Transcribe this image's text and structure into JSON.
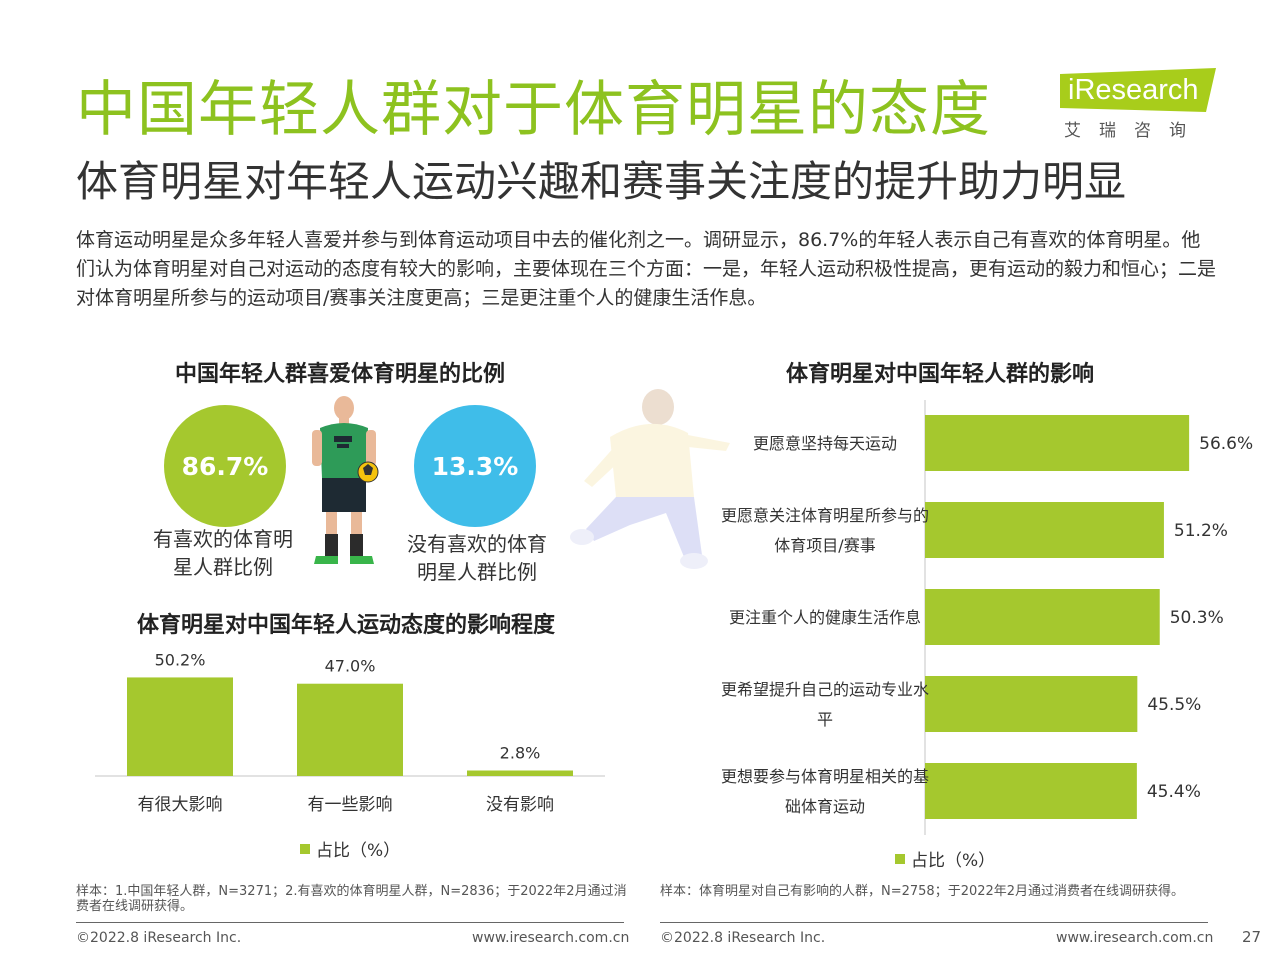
{
  "header": {
    "title": "中国年轻人群对于体育明星的态度",
    "subtitle": "体育明星对年轻人运动兴趣和赛事关注度的提升助力明显",
    "intro": "体育运动明星是众多年轻人喜爱并参与到体育运动项目中去的催化剂之一。调研显示，86.7%的年轻人表示自己有喜欢的体育明星。他们认为体育明星对自己对运动的态度有较大的影响，主要体现在三个方面：一是，年轻人运动积极性提高，更有运动的毅力和恒心；二是对体育明星所参与的运动项目/赛事关注度更高；三是更注重个人的健康生活作息。"
  },
  "logo": {
    "brand": "iResearch",
    "chinese": "艾瑞咨询",
    "colors": {
      "logo_bg": "#a8cd1b"
    }
  },
  "theme": {
    "green": "#a5c82e",
    "blue": "#3fbde9",
    "title_green": "#8dc21f"
  },
  "chart_data": [
    {
      "type": "pie",
      "title": "中国年轻人群喜爱体育明星的比例",
      "slices": [
        {
          "label": "有喜欢的体育明星人群比例",
          "value": 86.7,
          "display": "86.7%",
          "caption_lines": [
            "有喜欢的体育明",
            "星人群比例"
          ],
          "color": "#a5c82e"
        },
        {
          "label": "没有喜欢的体育明星人群比例",
          "value": 13.3,
          "display": "13.3%",
          "caption_lines": [
            "没有喜欢的体育",
            "明星人群比例"
          ],
          "color": "#3fbde9"
        }
      ]
    },
    {
      "type": "bar",
      "title": "体育明星对中国年轻人运动态度的影响程度",
      "categories": [
        "有很大影响",
        "有一些影响",
        "没有影响"
      ],
      "values": [
        50.2,
        47.0,
        2.8
      ],
      "labels": [
        "50.2%",
        "47.0%",
        "2.8%"
      ],
      "ylim": [
        0,
        55
      ],
      "legend": "占比（%）",
      "color": "#a5c82e"
    },
    {
      "type": "bar",
      "orientation": "horizontal",
      "title": "体育明星对中国年轻人群的影响",
      "categories": [
        [
          "更愿意坚持每天运动"
        ],
        [
          "更愿意关注体育明星所参与的",
          "体育项目/赛事"
        ],
        [
          "更注重个人的健康生活作息"
        ],
        [
          "更希望提升自己的运动专业水",
          "平"
        ],
        [
          "更想要参与体育明星相关的基",
          "础体育运动"
        ]
      ],
      "values": [
        56.6,
        51.2,
        50.3,
        45.5,
        45.4
      ],
      "labels": [
        "56.6%",
        "51.2%",
        "50.3%",
        "45.5%",
        "45.4%"
      ],
      "xlim": [
        0,
        60
      ],
      "legend": "占比（%）",
      "color": "#a5c82e"
    }
  ],
  "notes": {
    "left": "样本：1.中国年轻人群，N=3271；2.有喜欢的体育明星人群，N=2836；于2022年2月通过消费者在线调研获得。",
    "right": "样本：体育明星对自己有影响的人群，N=2758；于2022年2月通过消费者在线调研获得。"
  },
  "footer": {
    "left_copyright": "©2022.8 iResearch Inc.",
    "left_url": "www.iresearch.com.cn",
    "right_copyright": "©2022.8 iResearch Inc.",
    "right_url": "www.iresearch.com.cn",
    "page_number": "27"
  }
}
